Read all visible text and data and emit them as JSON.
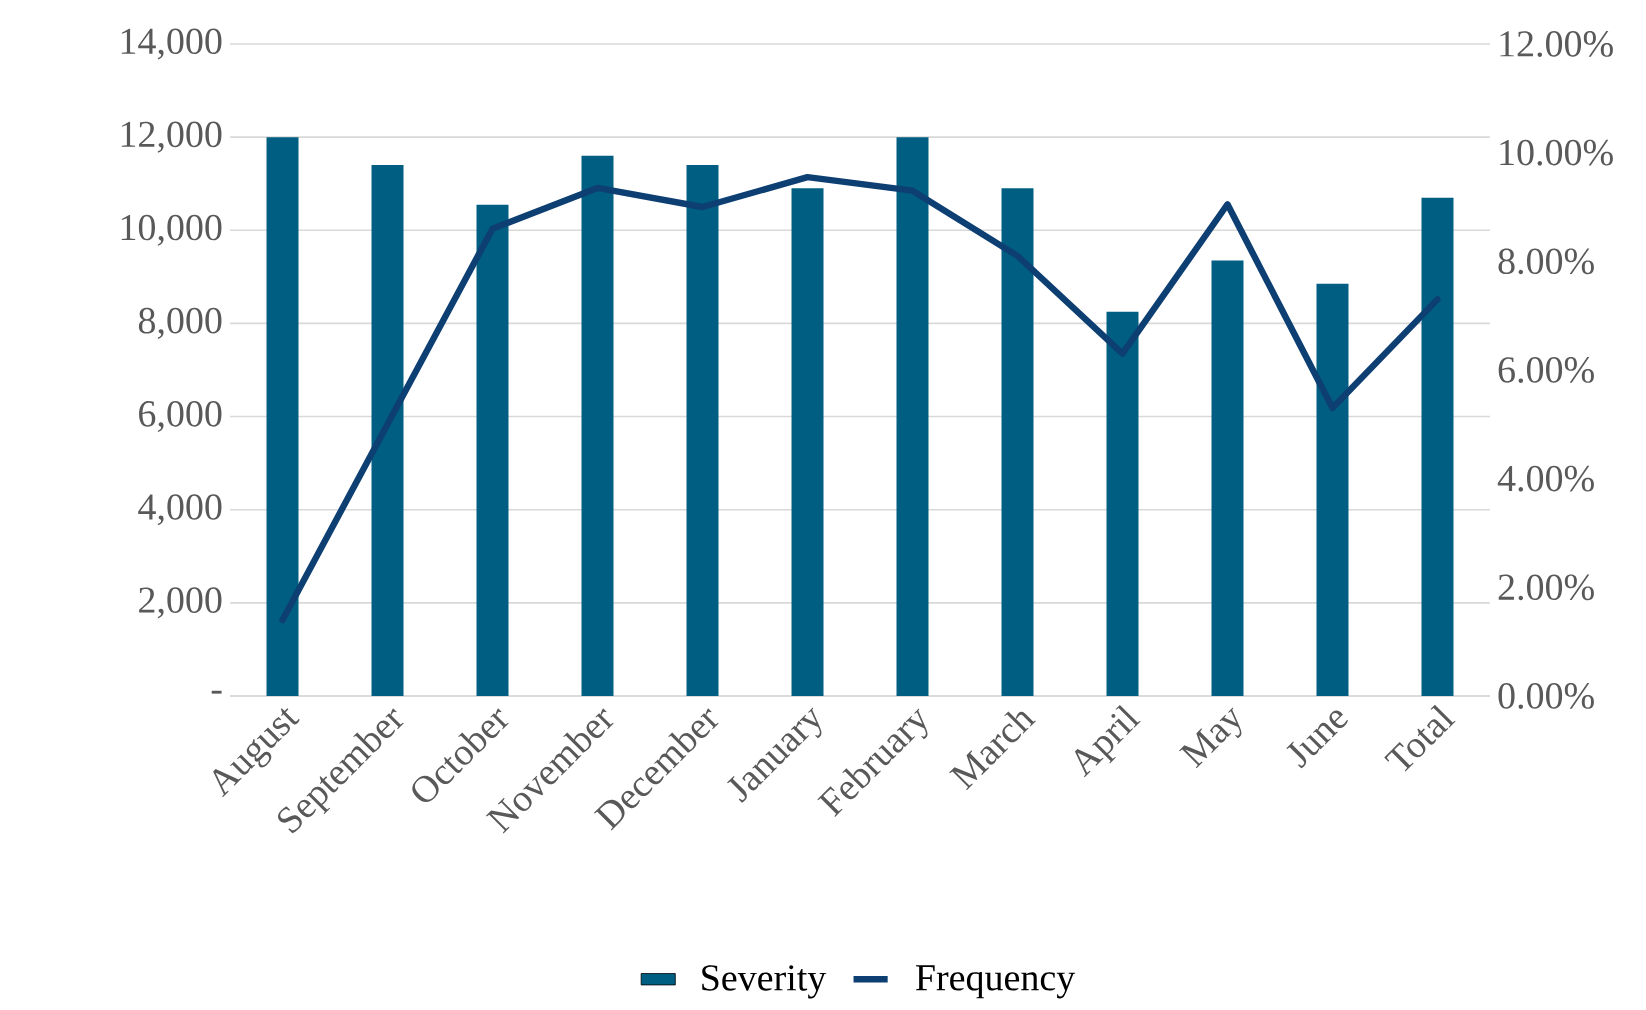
{
  "chart_data": {
    "type": "bar",
    "categories": [
      "August",
      "September",
      "October",
      "November",
      "December",
      "January",
      "February",
      "March",
      "April",
      "May",
      "June",
      "Total"
    ],
    "series": [
      {
        "name": "Severity",
        "color": "#005e82",
        "values": [
          12000,
          11400,
          10550,
          11600,
          11400,
          10900,
          12000,
          10900,
          8250,
          9350,
          8850,
          10700
        ]
      },
      {
        "name": "Frequency",
        "type": "line",
        "axis": "y2",
        "color": "#0d3f73",
        "values": [
          1.4,
          5.0,
          8.6,
          9.35,
          9.0,
          9.55,
          9.3,
          8.1,
          6.3,
          9.05,
          5.3,
          7.3
        ]
      }
    ],
    "ylim": [
      0,
      14000
    ],
    "yticks": [
      {
        "value": 0,
        "label": "-"
      },
      {
        "value": 2000,
        "label": "2,000"
      },
      {
        "value": 4000,
        "label": "4,000"
      },
      {
        "value": 6000,
        "label": "6,000"
      },
      {
        "value": 8000,
        "label": "8,000"
      },
      {
        "value": 10000,
        "label": "10,000"
      },
      {
        "value": 12000,
        "label": "12,000"
      },
      {
        "value": 14000,
        "label": "14,000"
      }
    ],
    "y2lim": [
      0,
      12
    ],
    "y2ticks": [
      {
        "value": 0,
        "label": "0.00%"
      },
      {
        "value": 2,
        "label": "2.00%"
      },
      {
        "value": 4,
        "label": "4.00%"
      },
      {
        "value": 6,
        "label": "6.00%"
      },
      {
        "value": 8,
        "label": "8.00%"
      },
      {
        "value": 10,
        "label": "10.00%"
      },
      {
        "value": 12,
        "label": "12.00%"
      }
    ],
    "grid": "y",
    "legend": "bottom",
    "marker": "none",
    "line_style": "solid"
  }
}
